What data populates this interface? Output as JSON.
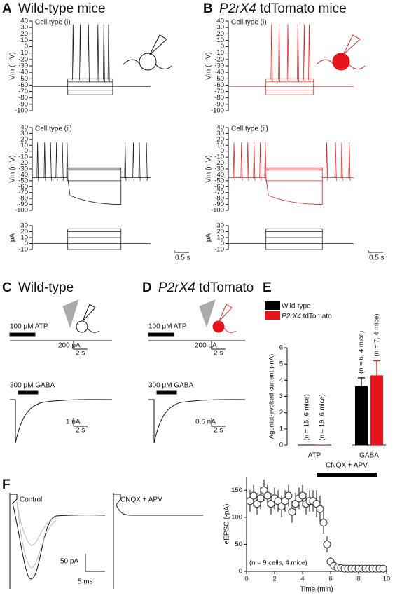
{
  "panels": {
    "A": {
      "label": "A",
      "title": "Wild-type mice",
      "scale_x": "0.5 s"
    },
    "B": {
      "label": "B",
      "title": "P2rX4 tdTomato mice",
      "scale_x": "0.5 s"
    },
    "C": {
      "label": "C",
      "title": "Wild-type",
      "atp": "100 μM ATP",
      "atp_scale_y": "200 pA",
      "atp_scale_x": "2 s",
      "gaba": "300 μM GABA",
      "gaba_scale_y": "1 nA",
      "gaba_scale_x": "2 s"
    },
    "D": {
      "label": "D",
      "title": "P2rX4 tdTomato",
      "atp": "100 μM ATP",
      "atp_scale_y": "200 pA",
      "atp_scale_x": "2 s",
      "gaba": "300 μM GABA",
      "gaba_scale_y": "0.6 nA",
      "gaba_scale_x": "2 s"
    },
    "E": {
      "label": "E"
    },
    "F": {
      "label": "F",
      "control": "Control",
      "drug": "CNQX + APV",
      "scale_y": "50 pA",
      "scale_x": "5 ms"
    }
  },
  "chart_data": [
    {
      "type": "trace",
      "ylabel": "Vm (mV)",
      "annotation": "Cell type (i)",
      "color": "#222222",
      "ylim": [
        -100,
        40
      ],
      "yticks": [
        40,
        30,
        20,
        10,
        0,
        -10,
        -20,
        -30,
        -40,
        -50,
        -60,
        -70,
        -80,
        -90,
        -100
      ]
    },
    {
      "type": "trace",
      "ylabel": "Vm (mV)",
      "annotation": "Cell type (ii)",
      "color": "#222222",
      "ylim": [
        -100,
        40
      ],
      "yticks": [
        40,
        30,
        20,
        10,
        0,
        -10,
        -20,
        -30,
        -40,
        -50,
        -60,
        -70,
        -80,
        -90,
        -100
      ]
    },
    {
      "type": "trace",
      "ylabel": "pA",
      "color": "#222222",
      "ylim": [
        -10,
        30
      ],
      "yticks": [
        30,
        20,
        10,
        0,
        -10
      ]
    },
    {
      "type": "trace",
      "ylabel": "Vm (mV)",
      "annotation": "Cell type (i)",
      "color": "#e02828",
      "ylim": [
        -100,
        40
      ],
      "yticks": [
        40,
        30,
        20,
        10,
        0,
        -10,
        -20,
        -30,
        -40,
        -50,
        -60,
        -70,
        -80,
        -90,
        -100
      ]
    },
    {
      "type": "trace",
      "ylabel": "Vm (mV)",
      "annotation": "Cell type (ii)",
      "color": "#e02828",
      "ylim": [
        -100,
        40
      ],
      "yticks": [
        40,
        30,
        20,
        10,
        0,
        -10,
        -20,
        -30,
        -40,
        -50,
        -60,
        -70,
        -80,
        -90,
        -100
      ]
    },
    {
      "type": "trace",
      "ylabel": "pA",
      "color": "#222222",
      "ylim": [
        -10,
        30
      ],
      "yticks": [
        30,
        20,
        10,
        0,
        -10
      ]
    },
    {
      "type": "bar",
      "ylabel": "Agonist-evoked current (-nA)",
      "categories": [
        "ATP",
        "GABA"
      ],
      "ylim": [
        0,
        6
      ],
      "yticks": [
        0,
        1,
        2,
        3,
        4,
        5,
        6
      ],
      "series": [
        {
          "name": "Wild-type",
          "color": "#000000",
          "values": [
            0.02,
            3.65
          ],
          "errors": [
            0,
            0.5
          ],
          "n_labels": [
            "(n = 15, 6 mice)",
            "(n = 6, 4 mice)"
          ]
        },
        {
          "name": "P2rX4 tdTomato",
          "color": "#e8141b",
          "values": [
            0.02,
            4.3
          ],
          "errors": [
            0,
            0.9
          ],
          "n_labels": [
            "(n = 19, 6 mice)",
            "(n = 7, 4 mice)"
          ]
        }
      ]
    },
    {
      "type": "scatter",
      "xlabel": "Time (min)",
      "ylabel": "eEPSC (-pA)",
      "annotation": "(n = 9 cells, 4 mice)",
      "drug_label": "CNQX + APV",
      "drug_period": [
        5,
        9.3
      ],
      "xlim": [
        0,
        10
      ],
      "xticks": [
        0,
        2,
        4,
        6,
        8,
        10
      ],
      "ylim": [
        0,
        175
      ],
      "yticks": [
        0,
        50,
        100,
        150
      ],
      "x": [
        0.25,
        0.5,
        0.75,
        1,
        1.25,
        1.5,
        1.75,
        2,
        2.25,
        2.5,
        2.75,
        3,
        3.25,
        3.5,
        3.75,
        4,
        4.25,
        4.5,
        4.75,
        5,
        5.25,
        5.5,
        5.75,
        6,
        6.25,
        6.5,
        6.75,
        7,
        7.25,
        7.5,
        7.75,
        8,
        8.25,
        8.5,
        8.75,
        9,
        9.25,
        9.5,
        9.75
      ],
      "values": [
        130,
        140,
        125,
        135,
        150,
        140,
        125,
        135,
        130,
        120,
        130,
        140,
        110,
        125,
        135,
        140,
        125,
        130,
        130,
        125,
        115,
        90,
        50,
        18,
        10,
        7,
        6,
        5,
        5,
        5,
        5,
        5,
        5,
        5,
        5,
        5,
        5,
        5,
        5
      ],
      "errors": [
        20,
        20,
        20,
        20,
        20,
        20,
        20,
        20,
        20,
        20,
        20,
        20,
        20,
        20,
        20,
        20,
        20,
        20,
        20,
        25,
        25,
        20,
        15,
        8,
        5,
        4,
        3,
        3,
        3,
        3,
        3,
        3,
        3,
        3,
        3,
        3,
        3,
        3,
        3
      ]
    }
  ]
}
